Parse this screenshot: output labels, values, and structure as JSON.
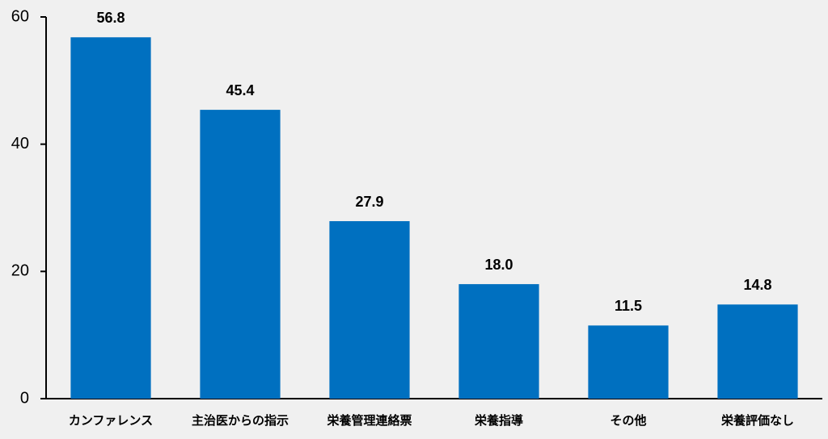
{
  "chart_data": {
    "type": "bar",
    "categories": [
      "カンファレンス",
      "主治医からの指示",
      "栄養管理連絡票",
      "栄養指導",
      "その他",
      "栄養評価なし"
    ],
    "values": [
      56.8,
      45.4,
      27.9,
      18.0,
      11.5,
      14.8
    ],
    "value_labels": [
      "56.8",
      "45.4",
      "27.9",
      "18.0",
      "11.5",
      "14.8"
    ],
    "color": "#0070c0",
    "ylim": [
      0,
      60
    ],
    "yticks": [
      0,
      20,
      40,
      60
    ],
    "grid": false
  }
}
